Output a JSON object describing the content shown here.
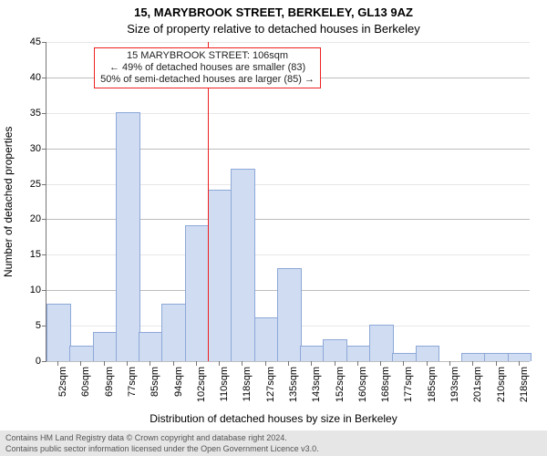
{
  "title_line1": "15, MARYBROOK STREET, BERKELEY, GL13 9AZ",
  "title_line2": "Size of property relative to detached houses in Berkeley",
  "title_fontsize": 13,
  "y_axis_label": "Number of detached properties",
  "x_axis_label": "Distribution of detached houses by size in Berkeley",
  "axis_label_fontsize": 12,
  "tick_fontsize": 11,
  "footer_fontsize": 9,
  "callout_fontsize": 11,
  "footer_line1": "Contains HM Land Registry data © Crown copyright and database right 2024.",
  "footer_line2": "Contains public sector information licensed under the Open Government Licence v3.0.",
  "chart": {
    "type": "histogram",
    "x_min_sqm": 48,
    "x_max_sqm": 222,
    "ylim": [
      0,
      45
    ],
    "ytick_step": 5,
    "xtick_start": 52,
    "xtick_step": 8.3,
    "xtick_count": 21,
    "xtick_suffix": "sqm",
    "bin_width_sqm": 8.3,
    "bar_fill": "#cfdcf2",
    "bar_stroke": "#8ea8d8",
    "grid_major_color": "#bdbdbd",
    "grid_minor_color": "#e7e7e7",
    "axis_color": "#757575",
    "background_color": "#ffffff",
    "bars_counts": [
      8,
      2,
      4,
      35,
      4,
      8,
      19,
      24,
      27,
      6,
      13,
      2,
      3,
      2,
      5,
      1,
      2,
      0,
      1,
      1,
      1
    ],
    "marker": {
      "value_sqm": 106,
      "line_color": "#ee2020"
    },
    "callout": {
      "border_color": "#ee2020",
      "text_color": "#222222",
      "line1": "15 MARYBROOK STREET: 106sqm",
      "line2": "← 49% of detached houses are smaller (83)",
      "line3": "50% of semi-detached houses are larger (85) →"
    }
  }
}
